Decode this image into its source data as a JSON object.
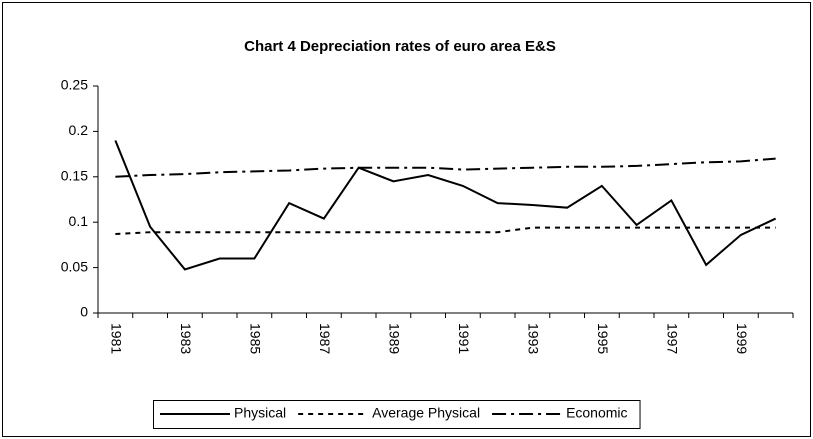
{
  "chart_data": {
    "type": "line",
    "title": "Chart 4  Depreciation rates of euro area E&S",
    "categories": [
      "1981",
      null,
      "1983",
      null,
      "1985",
      null,
      "1987",
      null,
      "1989",
      null,
      "1991",
      null,
      "1993",
      null,
      "1995",
      null,
      "1997",
      null,
      "1999",
      null
    ],
    "series": [
      {
        "name": "Physical",
        "color": "#000000",
        "dash": "solid",
        "values": [
          0.19,
          0.095,
          0.048,
          0.06,
          0.06,
          0.121,
          0.104,
          0.16,
          0.145,
          0.152,
          0.14,
          0.121,
          0.119,
          0.116,
          0.14,
          0.097,
          0.124,
          0.053,
          0.086,
          0.104
        ]
      },
      {
        "name": "Average Physical",
        "color": "#000000",
        "dash": "dashed",
        "values": [
          0.087,
          0.089,
          0.089,
          0.089,
          0.089,
          0.089,
          0.089,
          0.089,
          0.089,
          0.089,
          0.089,
          0.089,
          0.094,
          0.094,
          0.094,
          0.094,
          0.094,
          0.094,
          0.094,
          0.094
        ]
      },
      {
        "name": "Economic",
        "color": "#000000",
        "dash": "dashdot",
        "values": [
          0.15,
          0.152,
          0.153,
          0.155,
          0.156,
          0.157,
          0.159,
          0.16,
          0.16,
          0.16,
          0.158,
          0.159,
          0.16,
          0.161,
          0.161,
          0.162,
          0.164,
          0.166,
          0.167,
          0.17
        ]
      }
    ],
    "ylim": [
      0,
      0.25
    ],
    "yticks": [
      0,
      0.05,
      0.1,
      0.15,
      0.2,
      0.25
    ],
    "legend": "bottom"
  }
}
